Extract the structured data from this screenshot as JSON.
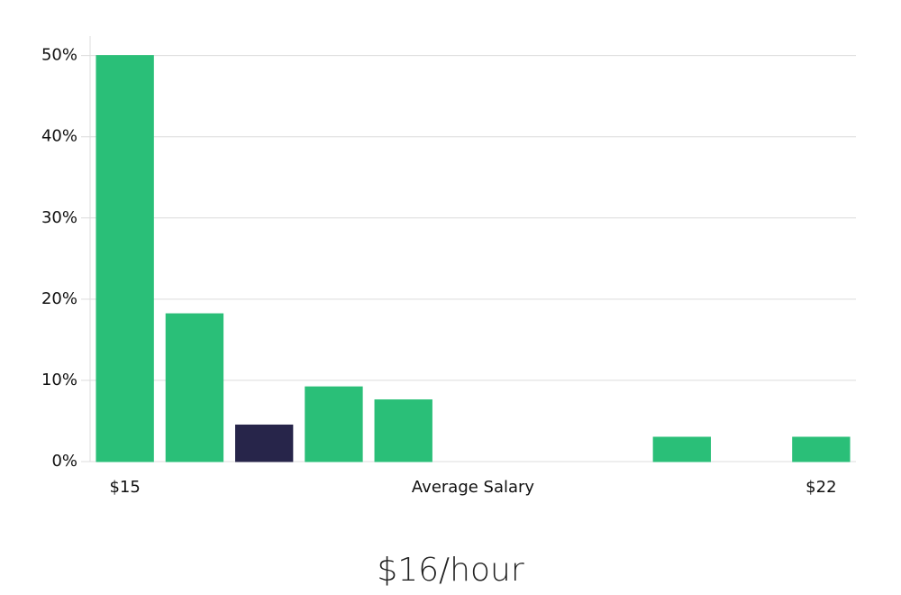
{
  "chart_data": {
    "type": "bar",
    "categories": [
      "$15",
      null,
      null,
      null,
      null,
      null,
      null,
      null,
      null,
      null,
      "$22"
    ],
    "values": [
      50,
      18.2,
      4.5,
      9.2,
      7.6,
      0,
      0,
      0,
      3.0,
      0,
      3.0
    ],
    "colors": [
      "#2abf78",
      "#2abf78",
      "#27254a",
      "#2abf78",
      "#2abf78",
      "#2abf78",
      "#2abf78",
      "#2abf78",
      "#2abf78",
      "#2abf78",
      "#2abf78"
    ],
    "x_label": "Average Salary",
    "ylim": [
      0,
      52.4
    ],
    "yticks": [
      {
        "value": 0,
        "label": "0%"
      },
      {
        "value": 10,
        "label": "10%"
      },
      {
        "value": 20,
        "label": "20%"
      },
      {
        "value": 30,
        "label": "30%"
      },
      {
        "value": 40,
        "label": "40%"
      },
      {
        "value": 50,
        "label": "50%"
      }
    ],
    "grid": true,
    "footer": "$16/hour"
  }
}
